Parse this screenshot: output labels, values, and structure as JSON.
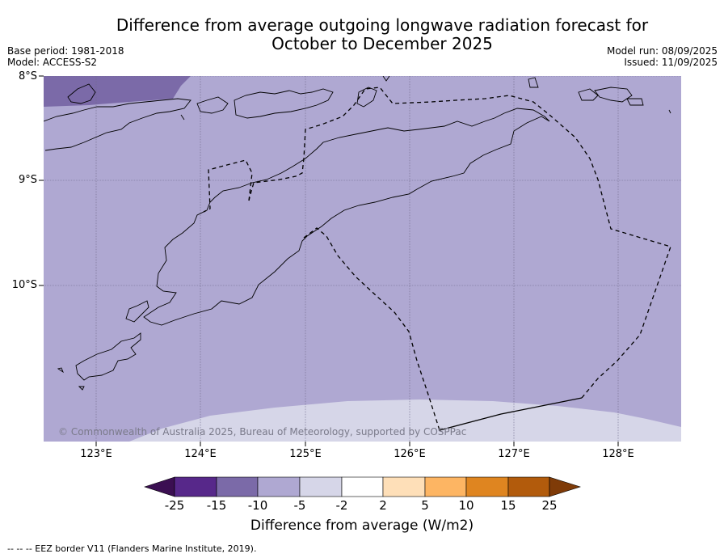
{
  "title_line1": "Difference from average outgoing longwave radiation forecast for",
  "title_line2": "October to December 2025",
  "base_period": "Base period: 1981-2018",
  "model": "Model: ACCESS-S2",
  "model_run": "Model run: 08/09/2025",
  "issued": "Issued: 11/09/2025",
  "lat_labels": [
    "8°S",
    "9°S",
    "10°S"
  ],
  "lon_labels": [
    "123°E",
    "124°E",
    "125°E",
    "126°E",
    "127°E",
    "128°E"
  ],
  "copyright": "© Commonwealth of Australia 2025, Bureau of Meteorology, supported by COSPPac",
  "colorbar": {
    "ticks": [
      "-25",
      "-15",
      "-10",
      "-5",
      "-2",
      "2",
      "5",
      "10",
      "15",
      "25"
    ],
    "colors": [
      "#3b0f52",
      "#57288a",
      "#7b6aa8",
      "#afa8d2",
      "#d6d6e8",
      "#ffffff",
      "#fedfb8",
      "#fdb563",
      "#df8520",
      "#b25b0c",
      "#7f3b08"
    ],
    "label": "Difference from average (W/m2)"
  },
  "footer": "--  --  -- EEZ border V11 (Flanders Marine Institute, 2019).",
  "colors": {
    "main_fill": "#afa8d2",
    "dark_patch": "#7b6aa8",
    "light_patch": "#d6d6e8"
  }
}
